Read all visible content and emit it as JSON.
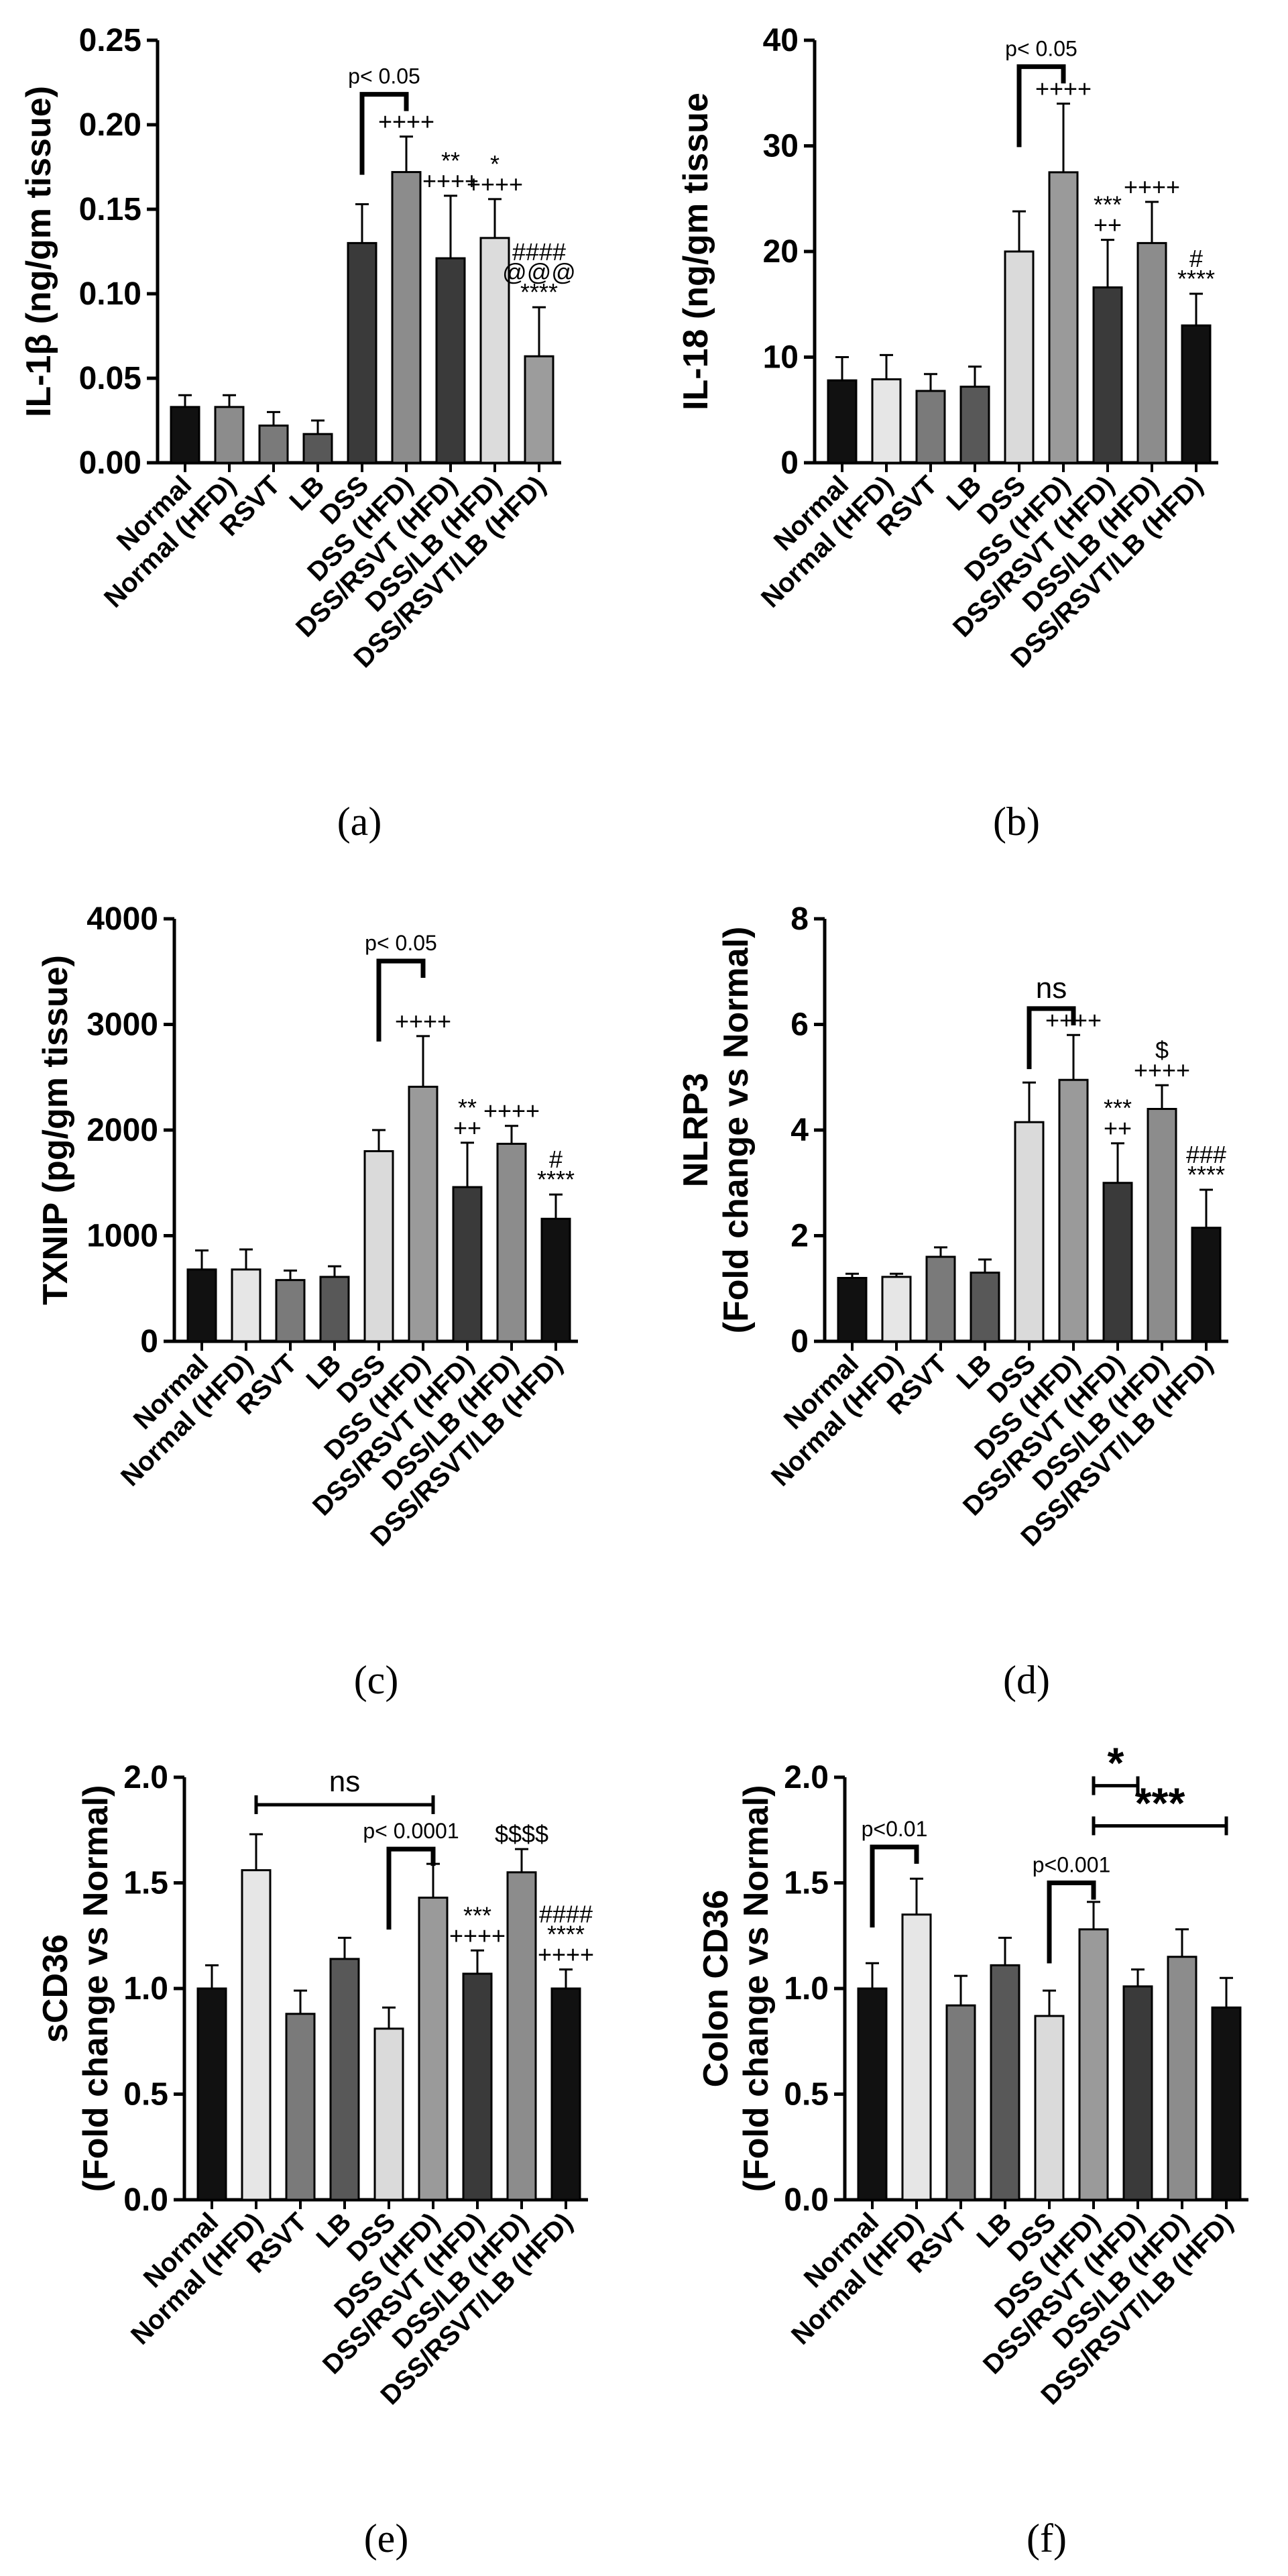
{
  "chart_data": [
    {
      "type": "bar",
      "panel_label": "(a)",
      "ylabel": "IL-1β (ng/gm tissue)",
      "ylim": [
        0,
        0.25
      ],
      "yticks": [
        "0.00",
        "0.05",
        "0.10",
        "0.15",
        "0.20",
        "0.25"
      ],
      "categories": [
        "Normal",
        "Normal (HFD)",
        "RSVT",
        "LB",
        "DSS",
        "DSS (HFD)",
        "DSS/RSVT (HFD)",
        "DSS/LB (HFD)",
        "DSS/RSVT/LB (HFD)"
      ],
      "values": [
        0.033,
        0.033,
        0.022,
        0.017,
        0.13,
        0.172,
        0.121,
        0.133,
        0.063
      ],
      "errors": [
        0.007,
        0.007,
        0.008,
        0.008,
        0.023,
        0.021,
        0.037,
        0.023,
        0.029
      ],
      "bar_colors": [
        "#111111",
        "#8c8c8c",
        "#7a7a7a",
        "#585858",
        "#3a3a3a",
        "#8c8c8c",
        "#3a3a3a",
        "#dcdcdc",
        "#9c9c9c"
      ],
      "annotations": [
        {
          "bar": 5,
          "lines": [
            "++++"
          ]
        },
        {
          "bar": 6,
          "lines": [
            "**",
            "++++"
          ]
        },
        {
          "bar": 7,
          "lines": [
            "*",
            "++++"
          ]
        },
        {
          "bar": 8,
          "lines": [
            "####",
            "@@@",
            "****"
          ]
        }
      ],
      "brackets": [
        {
          "from": 4,
          "to": 5,
          "label": "p< 0.05",
          "level": 0.218
        }
      ]
    },
    {
      "type": "bar",
      "panel_label": "(b)",
      "ylabel": "IL-18 (ng/gm tissue",
      "ylim": [
        0,
        40
      ],
      "yticks": [
        "0",
        "10",
        "20",
        "30",
        "40"
      ],
      "categories": [
        "Normal",
        "Normal (HFD)",
        "RSVT",
        "LB",
        "DSS",
        "DSS (HFD)",
        "DSS/RSVT (HFD)",
        "DSS/LB (HFD)",
        "DSS/RSVT/LB (HFD)"
      ],
      "values": [
        7.8,
        7.9,
        6.8,
        7.2,
        20.0,
        27.5,
        16.6,
        20.8,
        13.0
      ],
      "errors": [
        2.2,
        2.3,
        1.6,
        1.9,
        3.8,
        6.5,
        4.5,
        3.9,
        3.0
      ],
      "bar_colors": [
        "#111111",
        "#e6e6e6",
        "#7a7a7a",
        "#585858",
        "#dadada",
        "#9a9a9a",
        "#3a3a3a",
        "#8c8c8c",
        "#111111"
      ],
      "annotations": [
        {
          "bar": 5,
          "lines": [
            "++++"
          ]
        },
        {
          "bar": 6,
          "lines": [
            "***",
            "++"
          ]
        },
        {
          "bar": 7,
          "lines": [
            "++++"
          ]
        },
        {
          "bar": 8,
          "lines": [
            "#",
            "****"
          ]
        }
      ],
      "brackets": [
        {
          "from": 4,
          "to": 5,
          "label": "p< 0.05",
          "level": 37.5
        }
      ]
    },
    {
      "type": "bar",
      "panel_label": "(c)",
      "ylabel": "TXNIP (pg/gm tissue)",
      "ylim": [
        0,
        4000
      ],
      "yticks": [
        "0",
        "1000",
        "2000",
        "3000",
        "4000"
      ],
      "categories": [
        "Normal",
        "Normal (HFD)",
        "RSVT",
        "LB",
        "DSS",
        "DSS (HFD)",
        "DSS/RSVT (HFD)",
        "DSS/LB (HFD)",
        "DSS/RSVT/LB (HFD)"
      ],
      "values": [
        680,
        680,
        580,
        610,
        1800,
        2410,
        1460,
        1870,
        1160
      ],
      "errors": [
        180,
        190,
        90,
        100,
        200,
        480,
        420,
        170,
        230
      ],
      "bar_colors": [
        "#111111",
        "#e6e6e6",
        "#7a7a7a",
        "#585858",
        "#dadada",
        "#9a9a9a",
        "#3a3a3a",
        "#8c8c8c",
        "#111111"
      ],
      "annotations": [
        {
          "bar": 5,
          "lines": [
            "++++"
          ]
        },
        {
          "bar": 6,
          "lines": [
            "**",
            "++"
          ]
        },
        {
          "bar": 7,
          "lines": [
            "++++"
          ]
        },
        {
          "bar": 8,
          "lines": [
            "#",
            "****"
          ]
        }
      ],
      "brackets": [
        {
          "from": 4,
          "to": 5,
          "label": "p< 0.05",
          "level": 3600
        }
      ]
    },
    {
      "type": "bar",
      "panel_label": "(d)",
      "ylabel": "NLRP3",
      "ylabel2": "(Fold change vs Normal)",
      "ylim": [
        0,
        8
      ],
      "yticks": [
        "0",
        "2",
        "4",
        "6",
        "8"
      ],
      "categories": [
        "Normal",
        "Normal (HFD)",
        "RSVT",
        "LB",
        "DSS",
        "DSS (HFD)",
        "DSS/RSVT (HFD)",
        "DSS/LB (HFD)",
        "DSS/RSVT/LB (HFD)"
      ],
      "values": [
        1.2,
        1.22,
        1.6,
        1.3,
        4.15,
        4.95,
        3.0,
        4.4,
        2.15
      ],
      "errors": [
        0.08,
        0.06,
        0.18,
        0.25,
        0.75,
        0.85,
        0.75,
        0.45,
        0.72
      ],
      "bar_colors": [
        "#111111",
        "#e6e6e6",
        "#7a7a7a",
        "#585858",
        "#dadada",
        "#9a9a9a",
        "#3a3a3a",
        "#8c8c8c",
        "#111111"
      ],
      "annotations": [
        {
          "bar": 5,
          "lines": [
            "++++"
          ]
        },
        {
          "bar": 6,
          "lines": [
            "***",
            "++"
          ]
        },
        {
          "bar": 7,
          "lines": [
            "$",
            "++++"
          ]
        },
        {
          "bar": 8,
          "lines": [
            "###",
            "****"
          ]
        }
      ],
      "brackets": [
        {
          "from": 4,
          "to": 5,
          "label": "ns",
          "level": 6.3
        }
      ]
    },
    {
      "type": "bar",
      "panel_label": "(e)",
      "ylabel": "sCD36",
      "ylabel2": "(Fold change vs Normal)",
      "ylim": [
        0,
        2.0
      ],
      "yticks": [
        "0.0",
        "0.5",
        "1.0",
        "1.5",
        "2.0"
      ],
      "categories": [
        "Normal",
        "Normal (HFD)",
        "RSVT",
        "LB",
        "DSS",
        "DSS (HFD)",
        "DSS/RSVT (HFD)",
        "DSS/LB (HFD)",
        "DSS/RSVT/LB (HFD)"
      ],
      "values": [
        1.0,
        1.56,
        0.88,
        1.14,
        0.81,
        1.43,
        1.07,
        1.55,
        1.0
      ],
      "errors": [
        0.11,
        0.17,
        0.11,
        0.1,
        0.1,
        0.16,
        0.11,
        0.11,
        0.09
      ],
      "bar_colors": [
        "#111111",
        "#e6e6e6",
        "#7a7a7a",
        "#585858",
        "#dadada",
        "#9a9a9a",
        "#3a3a3a",
        "#8c8c8c",
        "#111111"
      ],
      "annotations": [
        {
          "bar": 6,
          "lines": [
            "***",
            "++++"
          ]
        },
        {
          "bar": 7,
          "lines": [
            "$$$$"
          ]
        },
        {
          "bar": 8,
          "lines": [
            "####",
            "****",
            "++++"
          ]
        }
      ],
      "brackets": [
        {
          "from": 1,
          "to": 5,
          "label": "ns",
          "level": 1.87,
          "style": "range"
        },
        {
          "from": 4,
          "to": 5,
          "label": "p< 0.0001",
          "level": 1.66
        }
      ]
    },
    {
      "type": "bar",
      "panel_label": "(f)",
      "ylabel": "Colon CD36",
      "ylabel2": "(Fold change vs Normal)",
      "ylim": [
        0,
        2.0
      ],
      "yticks": [
        "0.0",
        "0.5",
        "1.0",
        "1.5",
        "2.0"
      ],
      "categories": [
        "Normal",
        "Normal (HFD)",
        "RSVT",
        "LB",
        "DSS",
        "DSS (HFD)",
        "DSS/RSVT (HFD)",
        "DSS/LB (HFD)",
        "DSS/RSVT/LB (HFD)"
      ],
      "values": [
        1.0,
        1.35,
        0.92,
        1.11,
        0.87,
        1.28,
        1.01,
        1.15,
        0.91
      ],
      "errors": [
        0.12,
        0.17,
        0.14,
        0.13,
        0.12,
        0.13,
        0.08,
        0.13,
        0.14
      ],
      "bar_colors": [
        "#111111",
        "#e6e6e6",
        "#7a7a7a",
        "#585858",
        "#dadada",
        "#9a9a9a",
        "#3a3a3a",
        "#8c8c8c",
        "#111111"
      ],
      "annotations": [],
      "brackets": [
        {
          "from": 0,
          "to": 1,
          "label": "p<0.01",
          "level": 1.67
        },
        {
          "from": 4,
          "to": 5,
          "label": "p<0.001",
          "level": 1.5
        },
        {
          "from": 5,
          "to": 6,
          "label": "*",
          "level": 1.96,
          "style": "range"
        },
        {
          "from": 5,
          "to": 8,
          "label": "***",
          "level": 1.77,
          "style": "range"
        }
      ]
    }
  ]
}
